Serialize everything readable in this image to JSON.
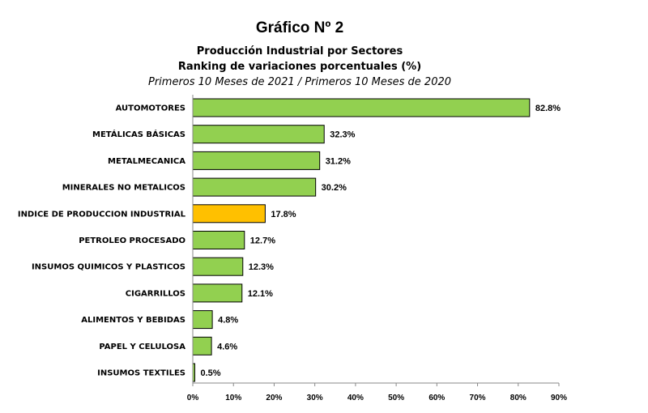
{
  "chart_data": {
    "type": "bar",
    "orientation": "horizontal",
    "title": "Gráfico Nº 2",
    "subtitle_1": "Producción Industrial por Sectores",
    "subtitle_2": "Ranking de variaciones porcentuales (%)",
    "subtitle_3": "Primeros 10 Meses de 2021 / Primeros 10 Meses de 2020",
    "categories": [
      "AUTOMOTORES",
      "METÁLICAS BÁSICAS",
      "METALMECANICA",
      "MINERALES NO METALICOS",
      "INDICE DE PRODUCCION INDUSTRIAL",
      "PETROLEO PROCESADO",
      "INSUMOS QUIMICOS Y PLASTICOS",
      "CIGARRILLOS",
      "ALIMENTOS Y BEBIDAS",
      "PAPEL Y CELULOSA",
      "INSUMOS TEXTILES"
    ],
    "values": [
      82.8,
      32.3,
      31.2,
      30.2,
      17.8,
      12.7,
      12.3,
      12.1,
      4.8,
      4.6,
      0.5
    ],
    "value_labels": [
      "82.8%",
      "32.3%",
      "31.2%",
      "30.2%",
      "17.8%",
      "12.7%",
      "12.3%",
      "12.1%",
      "4.8%",
      "4.6%",
      "0.5%"
    ],
    "xlim": [
      0,
      90
    ],
    "x_ticks": [
      0,
      10,
      20,
      30,
      40,
      50,
      60,
      70,
      80,
      90
    ],
    "x_tick_labels": [
      "0%",
      "10%",
      "20%",
      "30%",
      "40%",
      "50%",
      "60%",
      "70%",
      "80%",
      "90%"
    ],
    "highlight_index": 4,
    "bar_color": "#92d050",
    "highlight_color": "#ffc000",
    "bar_border_color": "#000000",
    "grid": false
  }
}
